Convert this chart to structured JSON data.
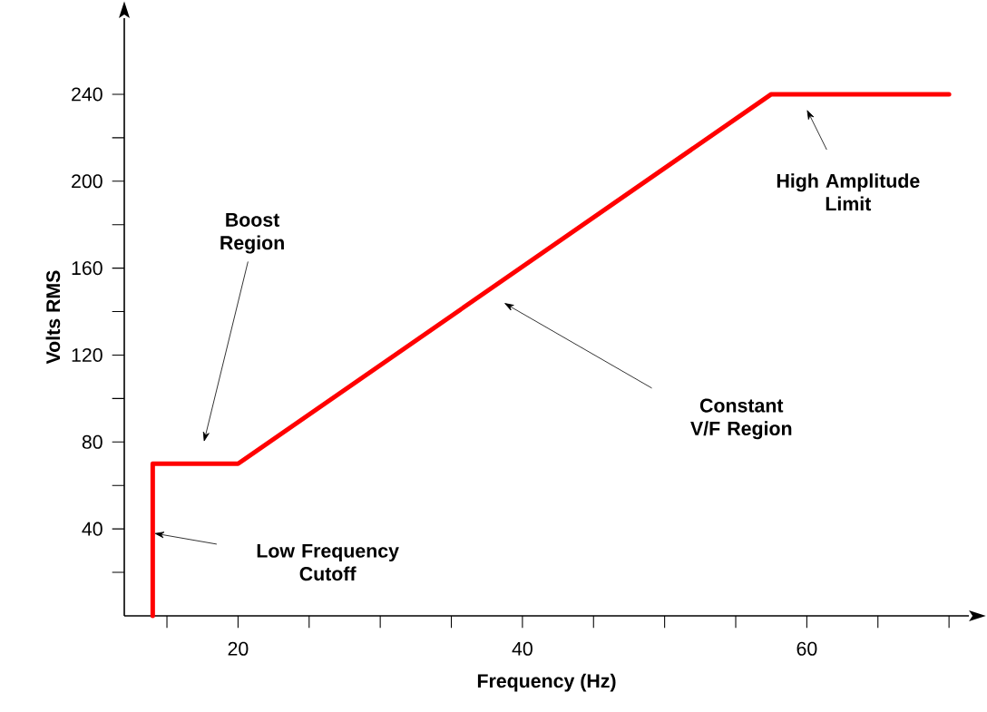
{
  "chart_data": {
    "type": "line",
    "xlabel": "Frequency (Hz)",
    "ylabel": "Volts RMS",
    "x": [
      14,
      14,
      20,
      57.5,
      70
    ],
    "series": [
      {
        "color": "#ff0000",
        "values": [
          0,
          70,
          70,
          240,
          240
        ]
      }
    ],
    "xlim": [
      12,
      71.4
    ],
    "ylim": [
      0,
      275
    ],
    "xticks": [
      {
        "value": 15,
        "label": null
      },
      20,
      {
        "value": 25,
        "label": null
      },
      {
        "value": 30,
        "label": null
      },
      {
        "value": 35,
        "label": null
      },
      40,
      {
        "value": 45,
        "label": null
      },
      {
        "value": 50,
        "label": null
      },
      {
        "value": 55,
        "label": null
      },
      60,
      {
        "value": 65,
        "label": null
      },
      {
        "value": 70,
        "label": null
      }
    ],
    "yticks": [
      {
        "value": 20,
        "label": null
      },
      40,
      {
        "value": 60,
        "label": null
      },
      80,
      {
        "value": 100,
        "label": null
      },
      120,
      {
        "value": 140,
        "label": null
      },
      160,
      {
        "value": 180,
        "label": null
      },
      200,
      {
        "value": 220,
        "label": null
      },
      240
    ],
    "annotations": [
      "Boost Region",
      "Low Frequency Cutoff",
      "Constant V/F Region",
      "High Amplitude Limit"
    ],
    "grid": false,
    "marker": "none",
    "line_style": "solid"
  }
}
